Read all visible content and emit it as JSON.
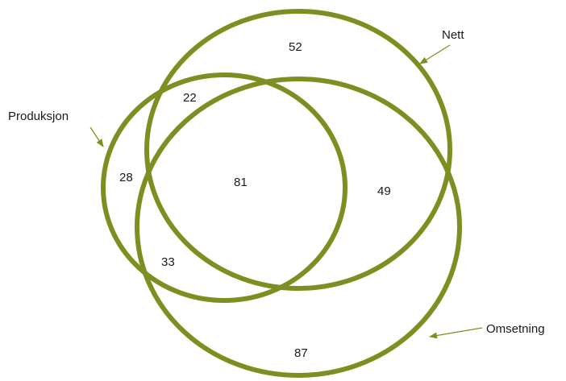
{
  "colors": {
    "outline": "#7e8f21",
    "text": "#1a1a1a",
    "background": "#ffffff"
  },
  "sets": {
    "nett": {
      "label": "Nett"
    },
    "produksjon": {
      "label": "Produksjon"
    },
    "omsetning": {
      "label": "Omsetning"
    }
  },
  "regions": {
    "nett_only": "52",
    "produksjon_nett": "22",
    "produksjon_only": "28",
    "all_three": "81",
    "nett_omsetning": "49",
    "produksjon_omsetning": "33",
    "omsetning_only": "87"
  }
}
